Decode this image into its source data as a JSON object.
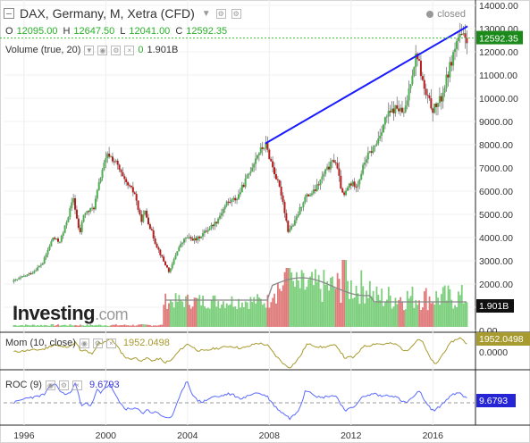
{
  "header": {
    "title": "DAX, Germany, M, Xetra (CFD)",
    "status": "closed",
    "ohlc": [
      {
        "label": "O",
        "value": "12095.00"
      },
      {
        "label": "H",
        "value": "12647.50"
      },
      {
        "label": "L",
        "value": "12041.00"
      },
      {
        "label": "C",
        "value": "12592.35"
      }
    ],
    "volume_label": "Volume (true, 20)",
    "volume_zero": "0",
    "volume_value": "1.901B",
    "watermark_brand": "Investing",
    "watermark_domain": ".com"
  },
  "indicators": {
    "mom_label": "Mom (10, close)",
    "mom_value": "1952.0498",
    "roc_label": "ROC (9)",
    "roc_value": "9.6793"
  },
  "colors": {
    "up": "#4caf50",
    "down": "#b71c1c",
    "trendline": "#1a1aff",
    "price_line": "#3cbf3c",
    "mom_line": "#a79a2e",
    "roc_line": "#5b6bff"
  },
  "chart_data": [
    {
      "type": "candlestick",
      "title": "DAX, Germany, M, Xetra (CFD)",
      "ylim": [
        0,
        14000
      ],
      "yticks": [
        "14000.00",
        "13000.00",
        "12000.00",
        "11000.00",
        "10000.00",
        "9000.00",
        "8000.00",
        "7000.00",
        "6000.00",
        "5000.00",
        "4000.00",
        "3000.00",
        "2000.00",
        "1000.00",
        "0.00"
      ],
      "last_price": "12592.35",
      "x_ticks": [
        "1996",
        "2000",
        "2004",
        "2008",
        "2012",
        "2016"
      ],
      "close_series": [
        [
          1995.5,
          2100
        ],
        [
          1996.0,
          2300
        ],
        [
          1996.5,
          2500
        ],
        [
          1997.0,
          2900
        ],
        [
          1997.5,
          4000
        ],
        [
          1997.8,
          3800
        ],
        [
          1998.0,
          4200
        ],
        [
          1998.5,
          5700
        ],
        [
          1998.8,
          4100
        ],
        [
          1999.0,
          5000
        ],
        [
          1999.5,
          5300
        ],
        [
          1999.9,
          6900
        ],
        [
          2000.2,
          7600
        ],
        [
          2000.6,
          7200
        ],
        [
          2001.0,
          6400
        ],
        [
          2001.5,
          5900
        ],
        [
          2001.8,
          4700
        ],
        [
          2002.0,
          5100
        ],
        [
          2002.5,
          3800
        ],
        [
          2002.9,
          3000
        ],
        [
          2003.2,
          2500
        ],
        [
          2003.6,
          3500
        ],
        [
          2004.0,
          4000
        ],
        [
          2004.5,
          3900
        ],
        [
          2005.0,
          4300
        ],
        [
          2005.5,
          4700
        ],
        [
          2006.0,
          5500
        ],
        [
          2006.5,
          5700
        ],
        [
          2007.0,
          6600
        ],
        [
          2007.5,
          7600
        ],
        [
          2007.9,
          8000
        ],
        [
          2008.3,
          6900
        ],
        [
          2008.7,
          5800
        ],
        [
          2009.0,
          4300
        ],
        [
          2009.3,
          4600
        ],
        [
          2009.8,
          5700
        ],
        [
          2010.3,
          6000
        ],
        [
          2010.8,
          6800
        ],
        [
          2011.3,
          7400
        ],
        [
          2011.7,
          5700
        ],
        [
          2012.0,
          6300
        ],
        [
          2012.4,
          6300
        ],
        [
          2012.8,
          7400
        ],
        [
          2013.3,
          8000
        ],
        [
          2013.8,
          9200
        ],
        [
          2014.3,
          9600
        ],
        [
          2014.7,
          9300
        ],
        [
          2015.0,
          10800
        ],
        [
          2015.3,
          12000
        ],
        [
          2015.7,
          10200
        ],
        [
          2016.1,
          9500
        ],
        [
          2016.5,
          10000
        ],
        [
          2016.9,
          11300
        ],
        [
          2017.3,
          12600
        ],
        [
          2017.6,
          12600
        ]
      ],
      "trendline": [
        [
          2007.8,
          8050
        ],
        [
          2017.7,
          13100
        ]
      ]
    },
    {
      "type": "bar",
      "title": "Volume (true, 20)",
      "last_value": "1.901B"
    },
    {
      "type": "line",
      "title": "Mom (10, close)",
      "ylim": [
        -3000,
        3000
      ],
      "yticks": [
        "0.0000"
      ],
      "last_value": "1952.0498"
    },
    {
      "type": "line",
      "title": "ROC (9)",
      "last_value": "9.6793"
    }
  ]
}
